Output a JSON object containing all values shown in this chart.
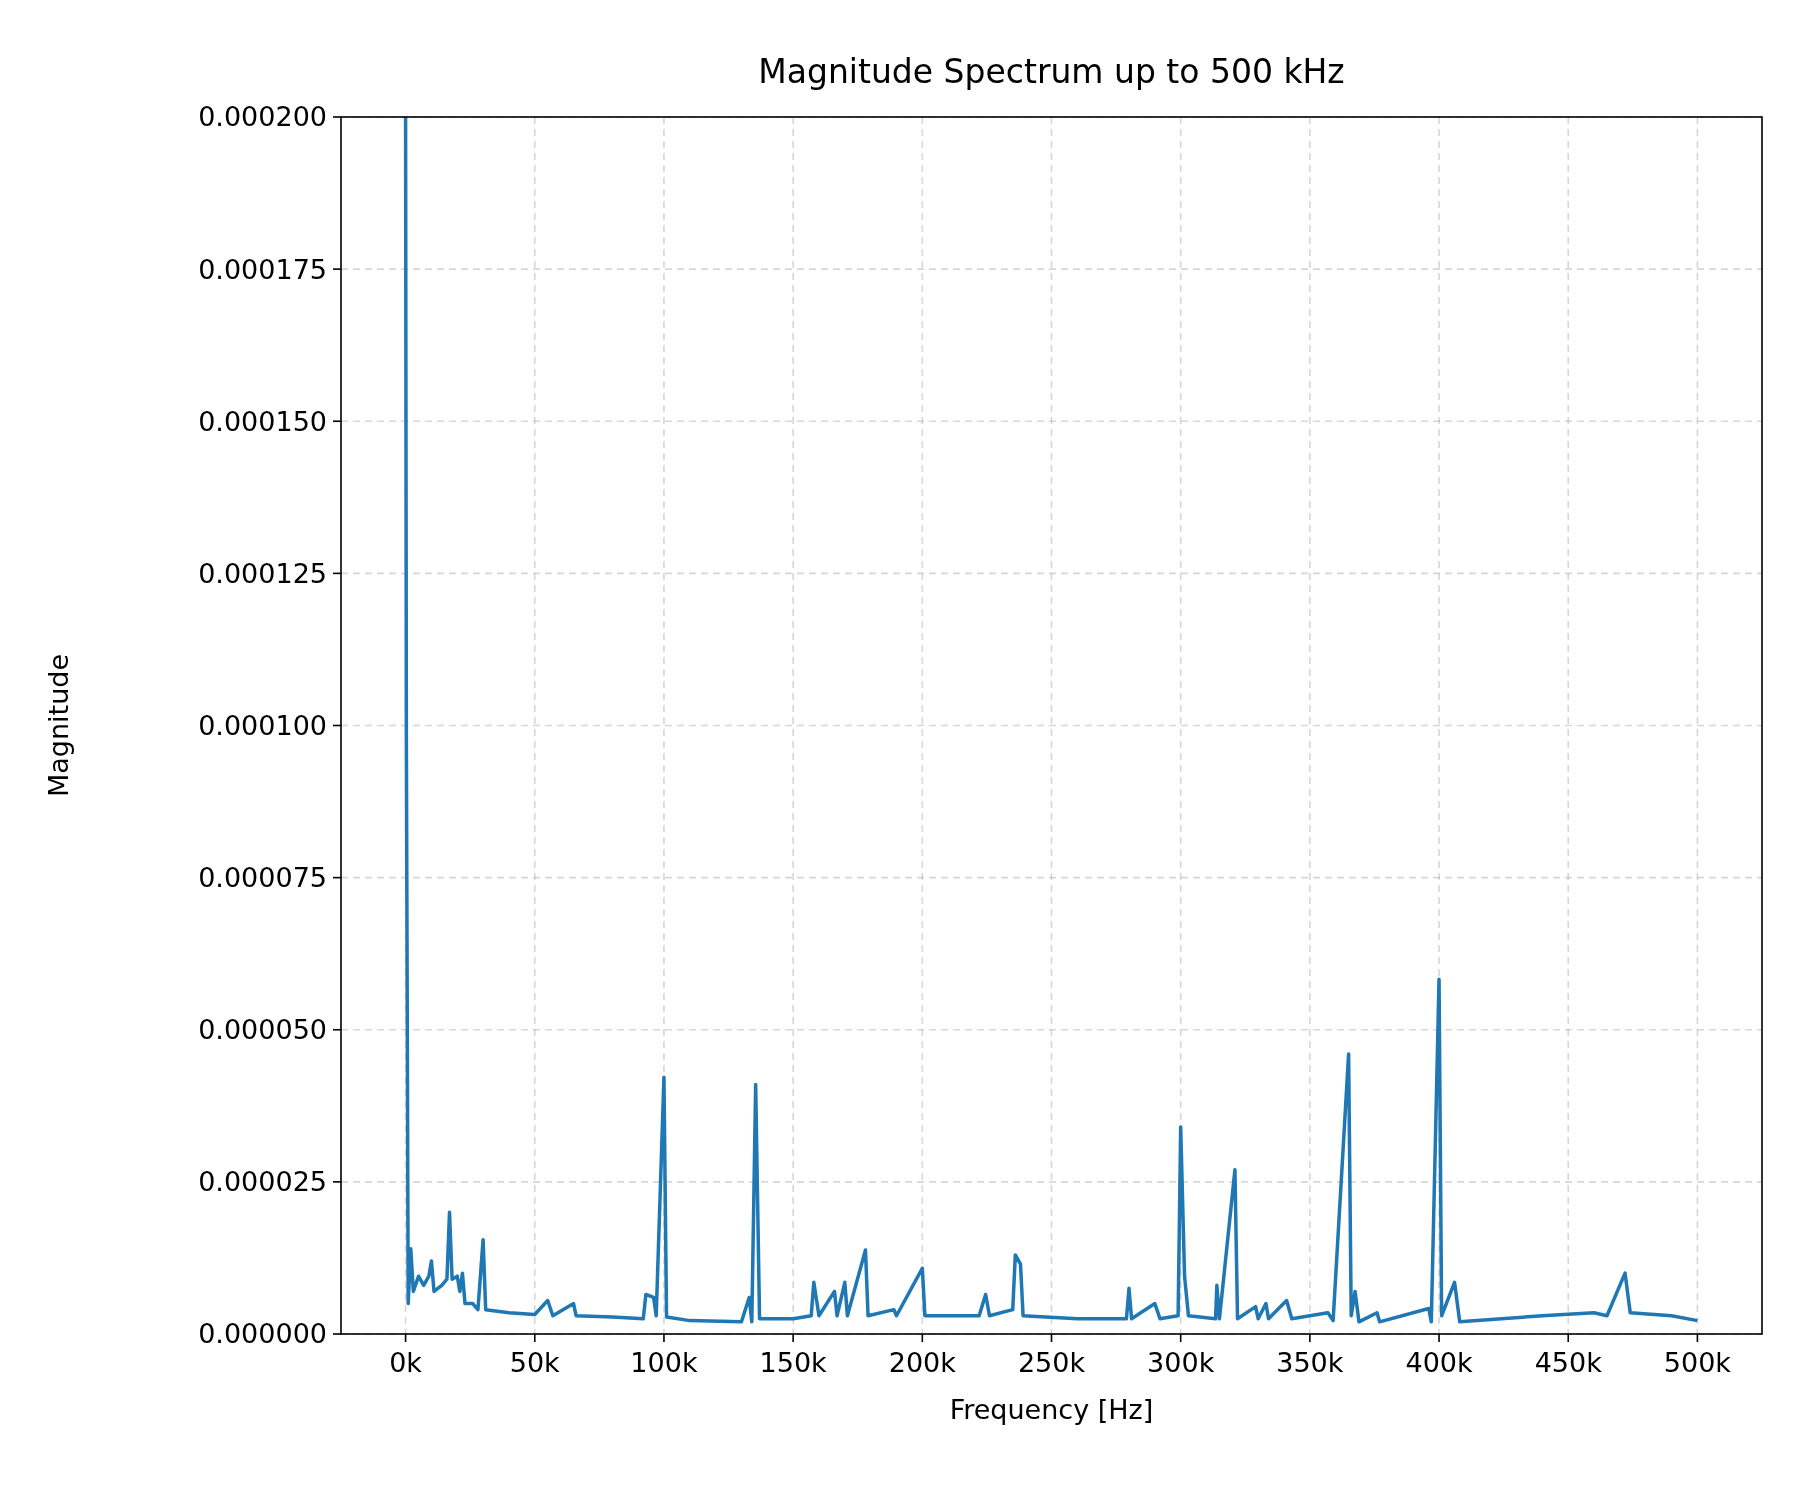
{
  "chart_data": {
    "type": "line",
    "title": "Magnitude Spectrum up to 500 kHz",
    "xlabel": "Frequency [Hz]",
    "ylabel": "Magnitude",
    "x": [
      0,
      300,
      1000,
      2000,
      3000,
      5000,
      7000,
      9000,
      10000,
      11000,
      14000,
      16000,
      17000,
      18000,
      20000,
      21000,
      22000,
      23000,
      26000,
      28000,
      30000,
      31000,
      40000,
      50000,
      55000,
      57000,
      65000,
      66000,
      80000,
      92000,
      93000,
      96000,
      97000,
      100000,
      101000,
      110000,
      130000,
      133000,
      134000,
      135500,
      137000,
      150000,
      157000,
      158000,
      160000,
      166000,
      167000,
      170000,
      171000,
      178000,
      179000,
      189000,
      190000,
      200000,
      201000,
      222000,
      224500,
      226000,
      235000,
      236000,
      238000,
      239000,
      260000,
      279000,
      280000,
      281000,
      290000,
      292000,
      299000,
      300000,
      301500,
      303000,
      313500,
      314000,
      315000,
      321000,
      322000,
      329000,
      330000,
      333000,
      334000,
      341000,
      343000,
      357000,
      359000,
      365000,
      366000,
      367500,
      369000,
      376000,
      377000,
      396000,
      397000,
      400000,
      401000,
      406000,
      408000,
      440000,
      460000,
      465000,
      472000,
      474000,
      490000,
      500000
    ],
    "series": [
      {
        "color": "#1f77b4",
        "values": [
          0.0002,
          9.8e-05,
          5e-06,
          1.4e-05,
          7e-06,
          9.5e-06,
          8e-06,
          9.5e-06,
          1.2e-05,
          7e-06,
          8e-06,
          9e-06,
          2e-05,
          9e-06,
          9.5e-06,
          7e-06,
          1e-05,
          5e-06,
          5e-06,
          4e-06,
          1.55e-05,
          4e-06,
          3.5e-06,
          3.2e-06,
          5.5e-06,
          3e-06,
          5e-06,
          3e-06,
          2.8e-06,
          2.5e-06,
          6.5e-06,
          6e-06,
          3e-06,
          4.22e-05,
          2.8e-06,
          2.2e-06,
          2e-06,
          6e-06,
          2e-06,
          4.1e-05,
          2.5e-06,
          2.5e-06,
          3e-06,
          8.5e-06,
          3e-06,
          7e-06,
          3e-06,
          8.5e-06,
          3e-06,
          1.38e-05,
          3e-06,
          4e-06,
          3e-06,
          1.08e-05,
          3e-06,
          3e-06,
          6.5e-06,
          3e-06,
          4e-06,
          1.3e-05,
          1.15e-05,
          3e-06,
          2.5e-06,
          2.5e-06,
          7.5e-06,
          2.5e-06,
          5e-06,
          2.5e-06,
          3e-06,
          3.4e-05,
          9.5e-06,
          3e-06,
          2.5e-06,
          8e-06,
          2.5e-06,
          2.7e-05,
          2.5e-06,
          4.5e-06,
          2.5e-06,
          5e-06,
          2.5e-06,
          5.5e-06,
          2.5e-06,
          3.5e-06,
          2.2e-06,
          4.6e-05,
          3e-06,
          7e-06,
          2e-06,
          3.5e-06,
          2e-06,
          4.2e-06,
          2e-06,
          5.83e-05,
          3e-06,
          8.5e-06,
          2e-06,
          3e-06,
          3.5e-06,
          3e-06,
          1e-05,
          3.5e-06,
          3e-06,
          2.2e-06
        ]
      }
    ],
    "xlim": [
      -25000,
      525000
    ],
    "xticks": [
      {
        "value": 0,
        "label": "0k"
      },
      {
        "value": 50000,
        "label": "50k"
      },
      {
        "value": 100000,
        "label": "100k"
      },
      {
        "value": 150000,
        "label": "150k"
      },
      {
        "value": 200000,
        "label": "200k"
      },
      {
        "value": 250000,
        "label": "250k"
      },
      {
        "value": 300000,
        "label": "300k"
      },
      {
        "value": 350000,
        "label": "350k"
      },
      {
        "value": 400000,
        "label": "400k"
      },
      {
        "value": 450000,
        "label": "450k"
      },
      {
        "value": 500000,
        "label": "500k"
      }
    ],
    "ylim": [
      0,
      0.0002
    ],
    "yticks": [
      {
        "value": 0,
        "label": "0.000000"
      },
      {
        "value": 2.5e-05,
        "label": "0.000025"
      },
      {
        "value": 5e-05,
        "label": "0.000050"
      },
      {
        "value": 7.5e-05,
        "label": "0.000075"
      },
      {
        "value": 0.0001,
        "label": "0.000100"
      },
      {
        "value": 0.000125,
        "label": "0.000125"
      },
      {
        "value": 0.00015,
        "label": "0.000150"
      },
      {
        "value": 0.000175,
        "label": "0.000175"
      },
      {
        "value": 0.0002,
        "label": "0.000200"
      }
    ],
    "grid": true,
    "line_style": "solid"
  }
}
